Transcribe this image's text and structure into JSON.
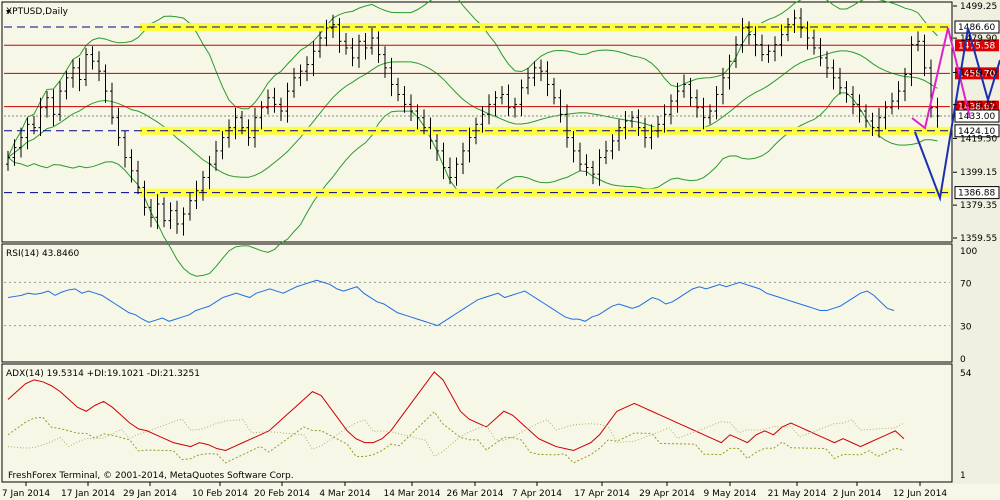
{
  "window": {
    "chart_title": "XPTUSD,Daily",
    "footer": "FreshForex Terminal, © 2001-2014, MetaQuotes Software Corp."
  },
  "price_pane": {
    "y_ticks": [
      "1499.25",
      "1479.90",
      "1459.20",
      "1439.85",
      "1419.50",
      "1399.15",
      "1379.35",
      "1359.55"
    ],
    "tick_values": [
      1499.25,
      1479.9,
      1459.2,
      1439.85,
      1419.5,
      1399.15,
      1379.35,
      1359.55
    ],
    "levels": [
      {
        "value": 1486.6,
        "label": "1486.60",
        "style": "dashed",
        "highlight": true
      },
      {
        "value": 1475.58,
        "label": "1475.58",
        "style": "red"
      },
      {
        "value": 1458.7,
        "label": "1458.70",
        "style": "red"
      },
      {
        "value": 1438.67,
        "label": "1438.67",
        "style": "red"
      },
      {
        "value": 1433.0,
        "label": "1433.00",
        "style": "current"
      },
      {
        "value": 1424.1,
        "label": "1424.10",
        "style": "dashed",
        "highlight": true
      },
      {
        "value": 1386.88,
        "label": "1386.88",
        "style": "dashed",
        "highlight": true
      }
    ]
  },
  "rsi_pane": {
    "title": "RSI(14) 43.8460",
    "y_ticks": [
      "100",
      "70",
      "30",
      "0"
    ],
    "tick_values": [
      100,
      70,
      30,
      0
    ]
  },
  "adx_pane": {
    "title": "ADX(14) 19.5314 +DI:19.1021 -DI:21.3251",
    "y_ticks": [
      "54",
      "1"
    ]
  },
  "time_axis": {
    "labels": [
      "7 Jan 2014",
      "17 Jan 2014",
      "29 Jan 2014",
      "10 Feb 2014",
      "20 Feb 2014",
      "4 Mar 2014",
      "14 Mar 2014",
      "26 Mar 2014",
      "7 Apr 2014",
      "17 Apr 2014",
      "29 Apr 2014",
      "9 May 2014",
      "21 May 2014",
      "2 Jun 2014",
      "12 Jun 2014"
    ]
  },
  "chart_data": {
    "type": "candlestick",
    "series": [
      {
        "name": "XPTUSD,Daily",
        "close": [
          1408,
          1414,
          1420,
          1428,
          1426,
          1438,
          1444,
          1434,
          1448,
          1456,
          1462,
          1455,
          1470,
          1466,
          1460,
          1448,
          1432,
          1420,
          1408,
          1400,
          1390,
          1378,
          1372,
          1380,
          1370,
          1376,
          1368,
          1374,
          1382,
          1388,
          1396,
          1404,
          1412,
          1420,
          1426,
          1432,
          1426,
          1420,
          1432,
          1438,
          1444,
          1440,
          1436,
          1448,
          1456,
          1460,
          1464,
          1472,
          1480,
          1486,
          1488,
          1478,
          1474,
          1468,
          1478,
          1474,
          1480,
          1470,
          1462,
          1452,
          1446,
          1440,
          1436,
          1432,
          1426,
          1418,
          1412,
          1402,
          1396,
          1404,
          1412,
          1420,
          1428,
          1434,
          1440,
          1444,
          1446,
          1438,
          1440,
          1450,
          1456,
          1462,
          1460,
          1452,
          1444,
          1434,
          1420,
          1412,
          1404,
          1402,
          1398,
          1408,
          1412,
          1418,
          1426,
          1430,
          1432,
          1426,
          1420,
          1424,
          1428,
          1434,
          1442,
          1448,
          1452,
          1444,
          1438,
          1432,
          1436,
          1446,
          1456,
          1466,
          1476,
          1486,
          1482,
          1476,
          1470,
          1472,
          1476,
          1482,
          1488,
          1492,
          1486,
          1480,
          1474,
          1468,
          1462,
          1456,
          1450,
          1446,
          1440,
          1436,
          1430,
          1426,
          1432,
          1438,
          1442,
          1448,
          1458,
          1476,
          1478,
          1462,
          1438,
          1433
        ]
      },
      {
        "name": "RSI(14)",
        "values": [
          56,
          57,
          58,
          60,
          59,
          60,
          62,
          58,
          61,
          63,
          64,
          60,
          62,
          60,
          58,
          54,
          50,
          46,
          42,
          40,
          36,
          33,
          35,
          37,
          34,
          36,
          38,
          40,
          44,
          46,
          48,
          52,
          56,
          58,
          60,
          58,
          56,
          60,
          62,
          64,
          62,
          60,
          63,
          66,
          68,
          70,
          72,
          70,
          68,
          64,
          62,
          64,
          66,
          60,
          56,
          52,
          50,
          46,
          42,
          40,
          38,
          36,
          34,
          32,
          30,
          34,
          38,
          42,
          46,
          50,
          54,
          56,
          58,
          60,
          56,
          58,
          60,
          62,
          58,
          54,
          50,
          46,
          42,
          38,
          36,
          36,
          34,
          38,
          40,
          44,
          48,
          50,
          48,
          46,
          48,
          52,
          56,
          54,
          50,
          52,
          56,
          60,
          64,
          66,
          64,
          66,
          68,
          66,
          68,
          70,
          68,
          66,
          64,
          60,
          58,
          56,
          54,
          52,
          50,
          48,
          46,
          44,
          44,
          46,
          48,
          52,
          56,
          60,
          62,
          58,
          52,
          46,
          44
        ]
      },
      {
        "name": "ADX(14)",
        "values": [
          40,
          44,
          48,
          50,
          49,
          47,
          44,
          40,
          36,
          34,
          37,
          39,
          36,
          32,
          28,
          25,
          24,
          22,
          20,
          18,
          17,
          16,
          18,
          17,
          15,
          14,
          16,
          18,
          20,
          22,
          24,
          28,
          32,
          36,
          40,
          44,
          42,
          36,
          30,
          24,
          20,
          18,
          18,
          20,
          24,
          30,
          36,
          42,
          48,
          54,
          50,
          42,
          34,
          30,
          28,
          26,
          30,
          34,
          32,
          28,
          24,
          20,
          18,
          16,
          15,
          14,
          16,
          18,
          22,
          28,
          34,
          36,
          38,
          36,
          34,
          32,
          30,
          28,
          26,
          24,
          22,
          20,
          18,
          22,
          20,
          18,
          22,
          24,
          22,
          26,
          28,
          26,
          24,
          22,
          20,
          18,
          20,
          18,
          16,
          18,
          20,
          22,
          24,
          20
        ]
      }
    ]
  }
}
